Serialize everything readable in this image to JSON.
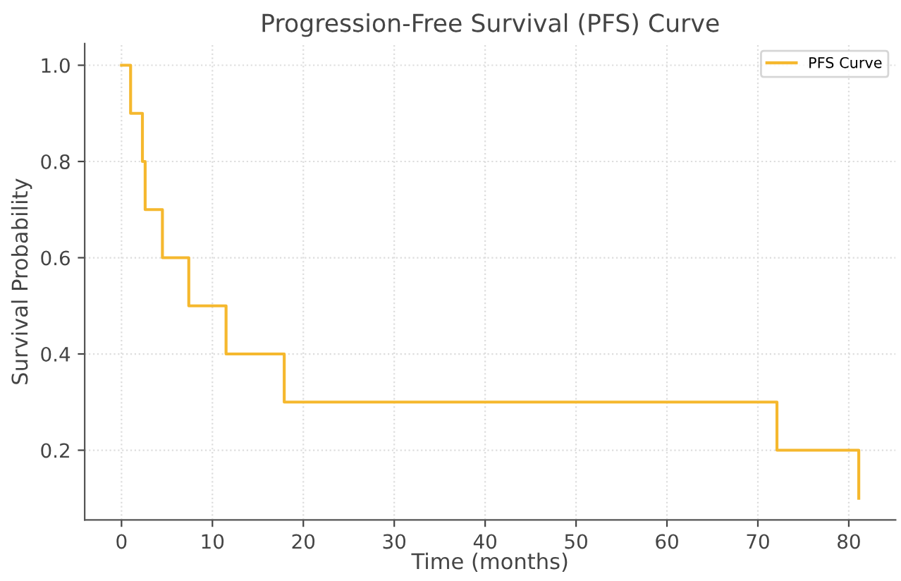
{
  "chart_data": {
    "type": "step",
    "title": "Progression-Free Survival (PFS) Curve",
    "xlabel": "Time (months)",
    "ylabel": "Survival Probability",
    "series": [
      {
        "name": "PFS Curve",
        "color": "#f5b82e",
        "x": [
          0,
          1,
          2.3,
          2.6,
          4.5,
          7.4,
          11.5,
          17.9,
          72.1,
          81.1
        ],
        "values": [
          1.0,
          0.9,
          0.8,
          0.7,
          0.6,
          0.5,
          0.4,
          0.3,
          0.2,
          0.1
        ]
      }
    ],
    "xlim": [
      -4.05,
      85.15
    ],
    "ylim": [
      0.055,
      1.045
    ],
    "xticks": [
      0,
      10,
      20,
      30,
      40,
      50,
      60,
      70,
      80
    ],
    "yticks": [
      0.2,
      0.4,
      0.6,
      0.8,
      {
        "value": 1,
        "label": "1.0"
      }
    ],
    "grid": true,
    "legend": "top right"
  }
}
